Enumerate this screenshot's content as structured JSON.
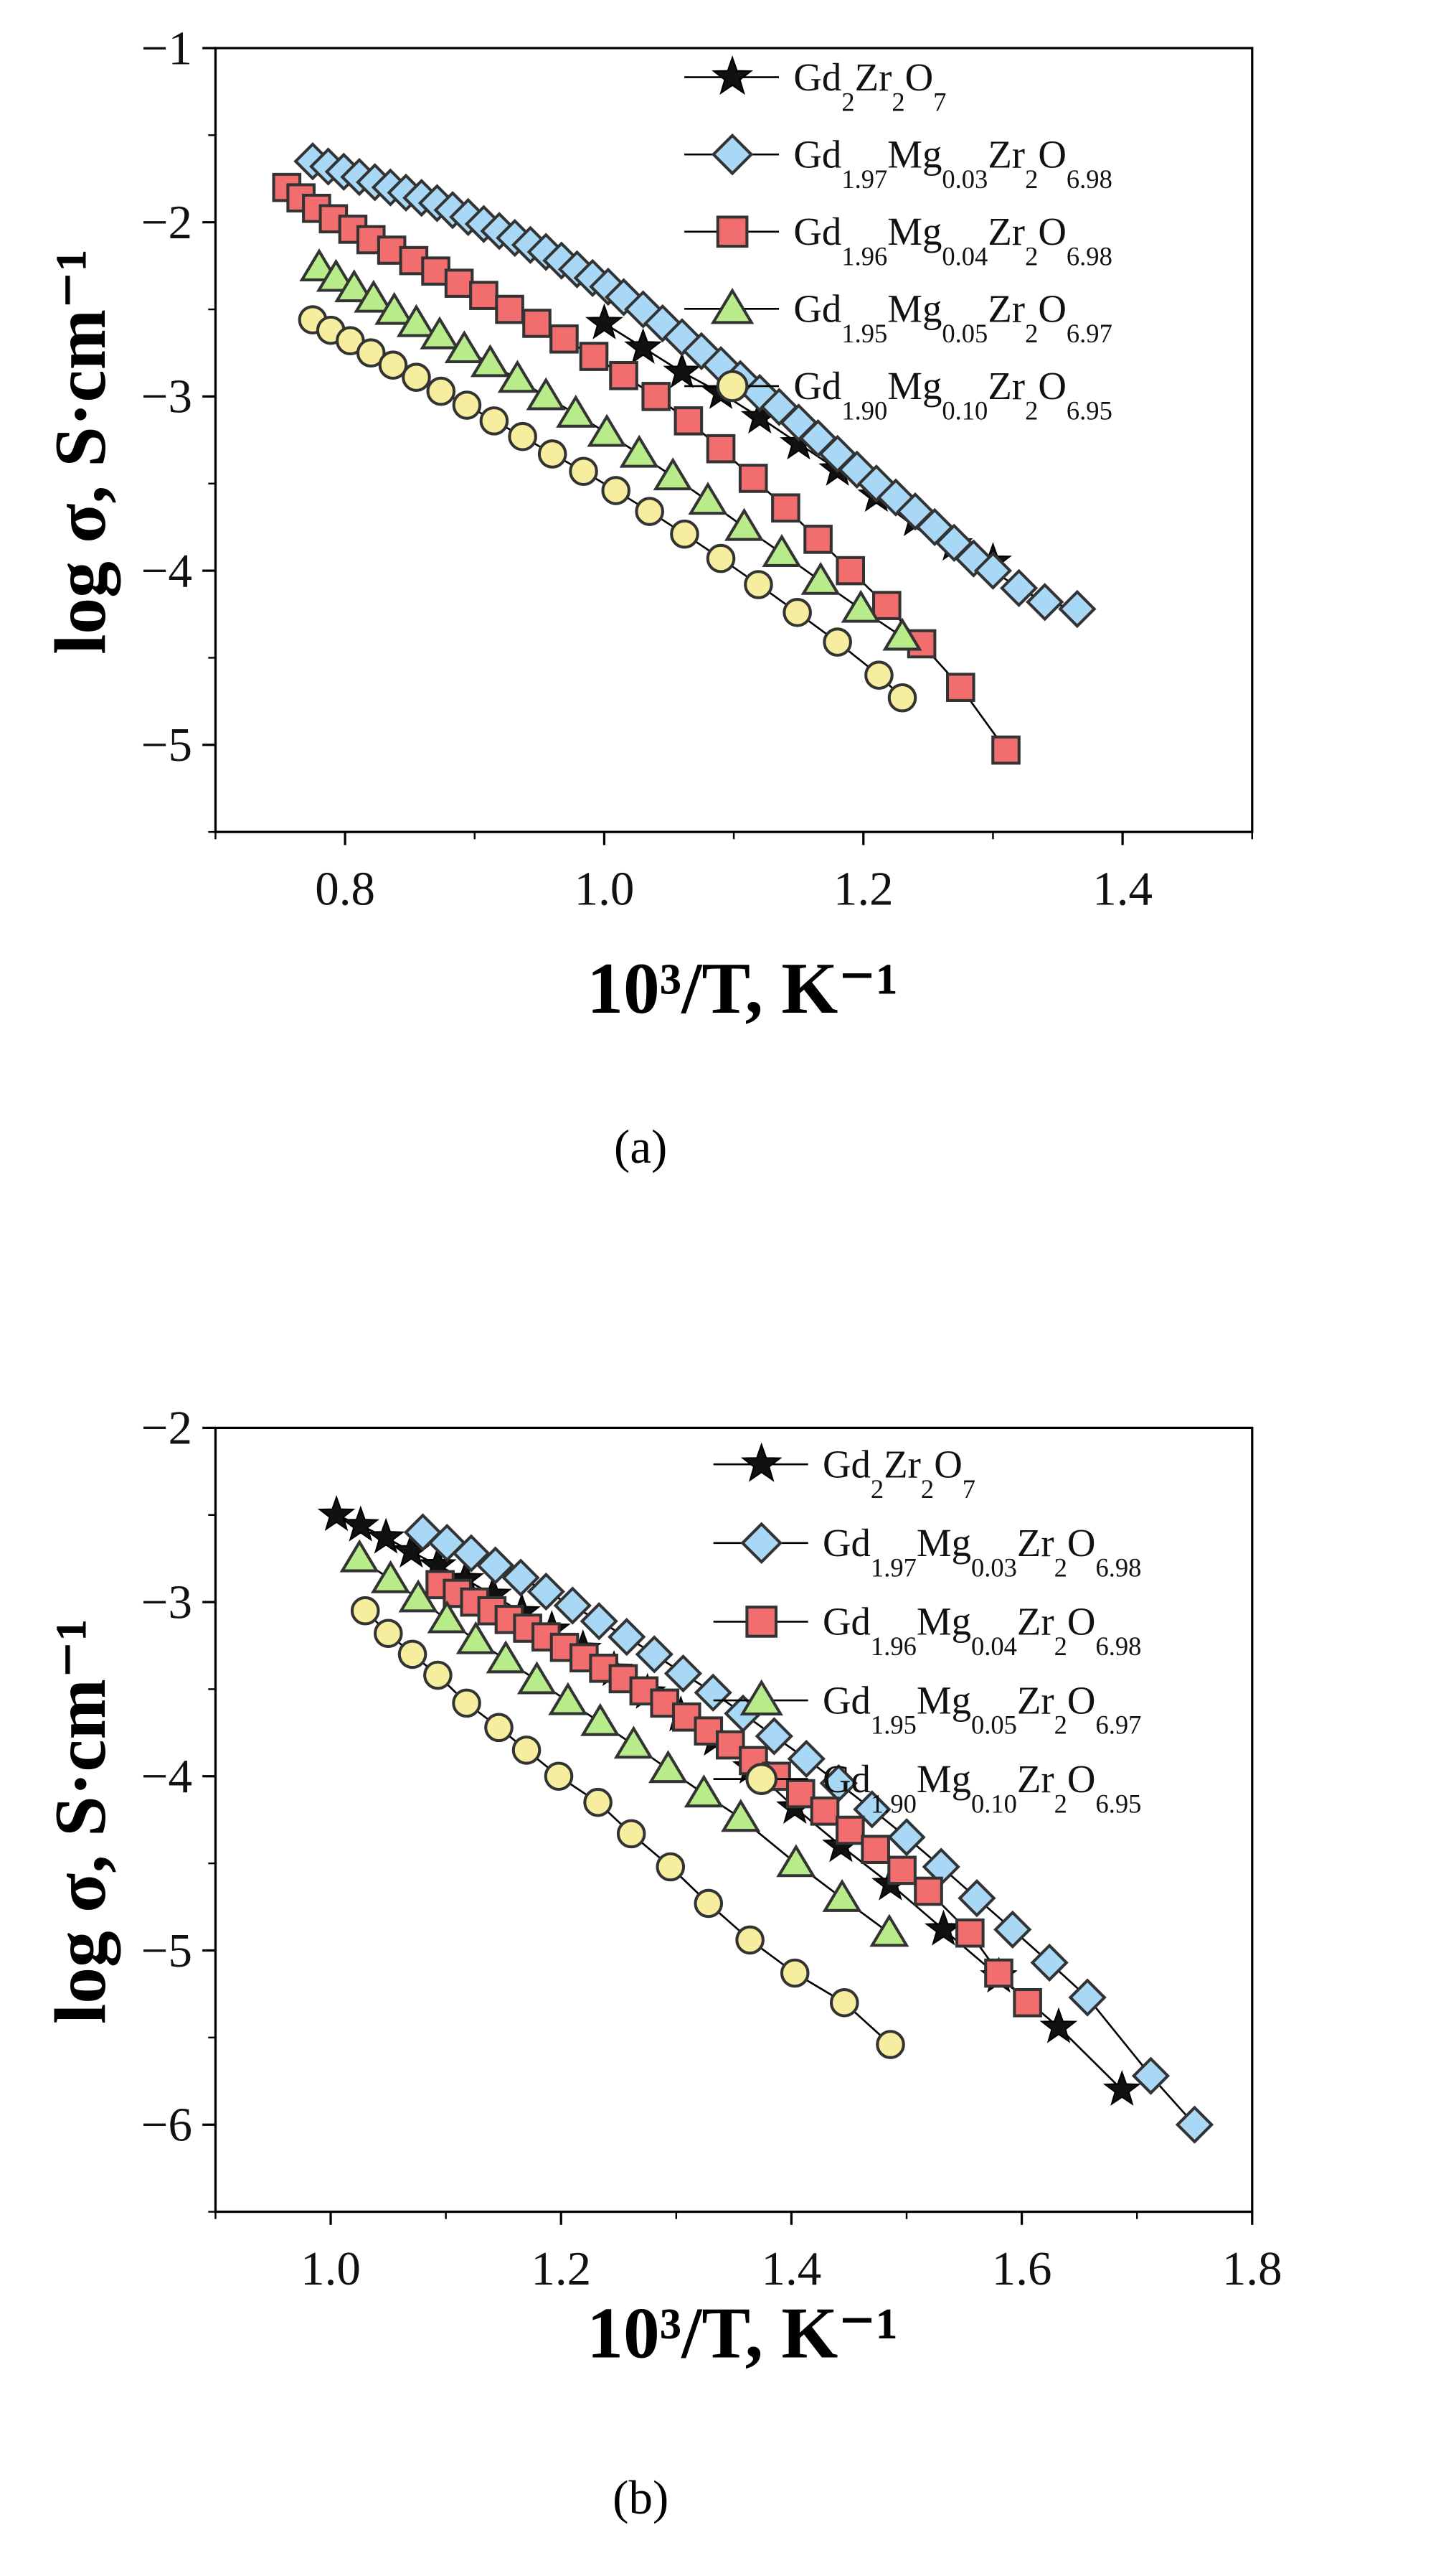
{
  "figure": {
    "marker_colors": {
      "Gd2Zr2O7": "#111111",
      "Gd1.97Mg0.03Zr2O6.98": "#a8d8f5",
      "Gd1.96Mg0.04Zr2O6.98": "#f26e6e",
      "Gd1.95Mg0.05Zr2O6.97": "#b8ec8a",
      "Gd1.90Mg0.10Zr2O6.95": "#f6ee9e"
    }
  },
  "chart_data": [
    {
      "type": "line",
      "panel_label": "(a)",
      "xlabel": "10³/T, K⁻¹",
      "ylabel": "log σ, S·cm⁻¹",
      "xlim": [
        0.7,
        1.5
      ],
      "ylim": [
        -5.5,
        -1
      ],
      "xticks": [
        "0.8",
        "1.0",
        "1.2",
        "1.4"
      ],
      "yticks": [
        "−1",
        "−2",
        "−3",
        "−4",
        "−5"
      ],
      "legend_position": "top-right",
      "series": [
        {
          "name": "Gd2Zr2O7",
          "marker": "star",
          "color": "#111111",
          "x": [
            1.0,
            1.03,
            1.06,
            1.09,
            1.12,
            1.15,
            1.18,
            1.21,
            1.24,
            1.27,
            1.3
          ],
          "y": [
            -2.58,
            -2.72,
            -2.86,
            -2.98,
            -3.12,
            -3.27,
            -3.42,
            -3.57,
            -3.71,
            -3.85,
            -3.95
          ]
        },
        {
          "name": "Gd1.97Mg0.03Zr2O6.98",
          "marker": "diamond",
          "color": "#a8d8f5",
          "x": [
            0.775,
            0.787,
            0.799,
            0.811,
            0.823,
            0.835,
            0.847,
            0.859,
            0.871,
            0.883,
            0.895,
            0.907,
            0.919,
            0.931,
            0.943,
            0.955,
            0.967,
            0.979,
            0.991,
            1.003,
            1.015,
            1.03,
            1.045,
            1.06,
            1.075,
            1.09,
            1.105,
            1.12,
            1.135,
            1.15,
            1.165,
            1.18,
            1.195,
            1.21,
            1.225,
            1.24,
            1.255,
            1.27,
            1.285,
            1.3,
            1.32,
            1.34,
            1.365
          ],
          "y": [
            -1.65,
            -1.68,
            -1.71,
            -1.74,
            -1.77,
            -1.8,
            -1.83,
            -1.86,
            -1.89,
            -1.93,
            -1.97,
            -2.01,
            -2.05,
            -2.09,
            -2.13,
            -2.17,
            -2.22,
            -2.27,
            -2.32,
            -2.37,
            -2.43,
            -2.5,
            -2.58,
            -2.66,
            -2.74,
            -2.82,
            -2.9,
            -2.98,
            -3.06,
            -3.15,
            -3.24,
            -3.33,
            -3.42,
            -3.5,
            -3.58,
            -3.66,
            -3.75,
            -3.84,
            -3.93,
            -4.0,
            -4.1,
            -4.18,
            -4.22
          ]
        },
        {
          "name": "Gd1.96Mg0.04Zr2O6.98",
          "marker": "square",
          "color": "#f26e6e",
          "x": [
            0.755,
            0.766,
            0.778,
            0.791,
            0.806,
            0.82,
            0.836,
            0.853,
            0.87,
            0.888,
            0.907,
            0.927,
            0.948,
            0.969,
            0.992,
            1.015,
            1.04,
            1.065,
            1.09,
            1.115,
            1.14,
            1.165,
            1.19,
            1.218,
            1.245,
            1.275,
            1.31
          ],
          "y": [
            -1.8,
            -1.86,
            -1.92,
            -1.98,
            -2.04,
            -2.1,
            -2.16,
            -2.22,
            -2.28,
            -2.35,
            -2.42,
            -2.5,
            -2.58,
            -2.67,
            -2.77,
            -2.88,
            -3.0,
            -3.14,
            -3.3,
            -3.47,
            -3.64,
            -3.82,
            -4.0,
            -4.2,
            -4.42,
            -4.67,
            -5.03
          ]
        },
        {
          "name": "Gd1.95Mg0.05Zr2O6.97",
          "marker": "triangle",
          "color": "#b8ec8a",
          "x": [
            0.78,
            0.793,
            0.807,
            0.822,
            0.838,
            0.855,
            0.873,
            0.892,
            0.912,
            0.933,
            0.955,
            0.978,
            1.002,
            1.027,
            1.053,
            1.08,
            1.108,
            1.137,
            1.167,
            1.198,
            1.23
          ],
          "y": [
            -2.26,
            -2.32,
            -2.38,
            -2.44,
            -2.51,
            -2.58,
            -2.65,
            -2.73,
            -2.81,
            -2.9,
            -3.0,
            -3.1,
            -3.21,
            -3.33,
            -3.46,
            -3.6,
            -3.75,
            -3.9,
            -4.06,
            -4.22,
            -4.38
          ]
        },
        {
          "name": "Gd1.90Mg0.10Zr2O6.95",
          "marker": "circle",
          "color": "#f6ee9e",
          "x": [
            0.775,
            0.789,
            0.804,
            0.82,
            0.837,
            0.855,
            0.874,
            0.894,
            0.915,
            0.937,
            0.96,
            0.984,
            1.009,
            1.035,
            1.062,
            1.09,
            1.119,
            1.149,
            1.18,
            1.212,
            1.23
          ],
          "y": [
            -2.56,
            -2.62,
            -2.68,
            -2.75,
            -2.82,
            -2.89,
            -2.97,
            -3.05,
            -3.14,
            -3.23,
            -3.33,
            -3.43,
            -3.54,
            -3.66,
            -3.79,
            -3.93,
            -4.08,
            -4.24,
            -4.41,
            -4.6,
            -4.73
          ]
        }
      ]
    },
    {
      "type": "line",
      "panel_label": "(b)",
      "xlabel": "10³/T, K⁻¹",
      "ylabel": "log σ, S·cm⁻¹",
      "xlim": [
        0.9,
        1.8
      ],
      "ylim": [
        -6.5,
        -2
      ],
      "xticks": [
        "1.0",
        "1.2",
        "1.4",
        "1.6",
        "1.8"
      ],
      "yticks": [
        "−2",
        "−3",
        "−4",
        "−5",
        "−6"
      ],
      "legend_position": "top-right",
      "series": [
        {
          "name": "Gd2Zr2O7",
          "marker": "star",
          "color": "#111111",
          "x": [
            1.005,
            1.026,
            1.048,
            1.07,
            1.093,
            1.117,
            1.141,
            1.166,
            1.192,
            1.219,
            1.246,
            1.275,
            1.304,
            1.334,
            1.365,
            1.403,
            1.443,
            1.486,
            1.532,
            1.58,
            1.632,
            1.687
          ],
          "y": [
            -2.5,
            -2.56,
            -2.63,
            -2.71,
            -2.79,
            -2.87,
            -2.96,
            -3.06,
            -3.16,
            -3.27,
            -3.39,
            -3.52,
            -3.65,
            -3.79,
            -3.95,
            -4.18,
            -4.4,
            -4.62,
            -4.88,
            -5.15,
            -5.44,
            -5.8
          ]
        },
        {
          "name": "Gd1.97Mg0.03Zr2O6.98",
          "marker": "diamond",
          "color": "#a8d8f5",
          "x": [
            1.08,
            1.101,
            1.122,
            1.143,
            1.165,
            1.187,
            1.21,
            1.233,
            1.257,
            1.281,
            1.306,
            1.332,
            1.358,
            1.385,
            1.413,
            1.441,
            1.47,
            1.5,
            1.53,
            1.561,
            1.592,
            1.624,
            1.657,
            1.712,
            1.75
          ],
          "y": [
            -2.6,
            -2.66,
            -2.72,
            -2.79,
            -2.86,
            -2.94,
            -3.02,
            -3.11,
            -3.2,
            -3.3,
            -3.41,
            -3.52,
            -3.64,
            -3.77,
            -3.9,
            -4.04,
            -4.19,
            -4.35,
            -4.52,
            -4.7,
            -4.88,
            -5.07,
            -5.27,
            -5.72,
            -6.0
          ]
        },
        {
          "name": "Gd1.96Mg0.04Zr2O6.98",
          "marker": "square",
          "color": "#f26e6e",
          "x": [
            1.095,
            1.11,
            1.125,
            1.14,
            1.155,
            1.171,
            1.187,
            1.203,
            1.22,
            1.237,
            1.254,
            1.272,
            1.29,
            1.309,
            1.328,
            1.347,
            1.367,
            1.387,
            1.408,
            1.429,
            1.451,
            1.473,
            1.496,
            1.519,
            1.555,
            1.58,
            1.605
          ],
          "y": [
            -2.9,
            -2.95,
            -3.0,
            -3.05,
            -3.1,
            -3.15,
            -3.2,
            -3.26,
            -3.32,
            -3.38,
            -3.44,
            -3.51,
            -3.58,
            -3.66,
            -3.74,
            -3.82,
            -3.91,
            -4.0,
            -4.1,
            -4.2,
            -4.31,
            -4.42,
            -4.54,
            -4.66,
            -4.9,
            -5.13,
            -5.3
          ]
        },
        {
          "name": "Gd1.95Mg0.05Zr2O6.97",
          "marker": "triangle",
          "color": "#b8ec8a",
          "x": [
            1.025,
            1.052,
            1.076,
            1.101,
            1.126,
            1.152,
            1.179,
            1.206,
            1.234,
            1.263,
            1.293,
            1.324,
            1.356,
            1.404,
            1.444,
            1.485
          ],
          "y": [
            -2.75,
            -2.87,
            -2.98,
            -3.1,
            -3.22,
            -3.33,
            -3.45,
            -3.57,
            -3.69,
            -3.82,
            -3.96,
            -4.1,
            -4.24,
            -4.5,
            -4.7,
            -4.9
          ]
        },
        {
          "name": "Gd1.90Mg0.10Zr2O6.95",
          "marker": "circle",
          "color": "#f6ee9e",
          "x": [
            1.03,
            1.05,
            1.071,
            1.093,
            1.118,
            1.146,
            1.17,
            1.198,
            1.232,
            1.261,
            1.295,
            1.328,
            1.364,
            1.403,
            1.446,
            1.486
          ],
          "y": [
            -3.05,
            -3.18,
            -3.3,
            -3.42,
            -3.58,
            -3.72,
            -3.85,
            -4.0,
            -4.15,
            -4.33,
            -4.52,
            -4.73,
            -4.94,
            -5.13,
            -5.3,
            -5.54
          ]
        }
      ]
    }
  ]
}
